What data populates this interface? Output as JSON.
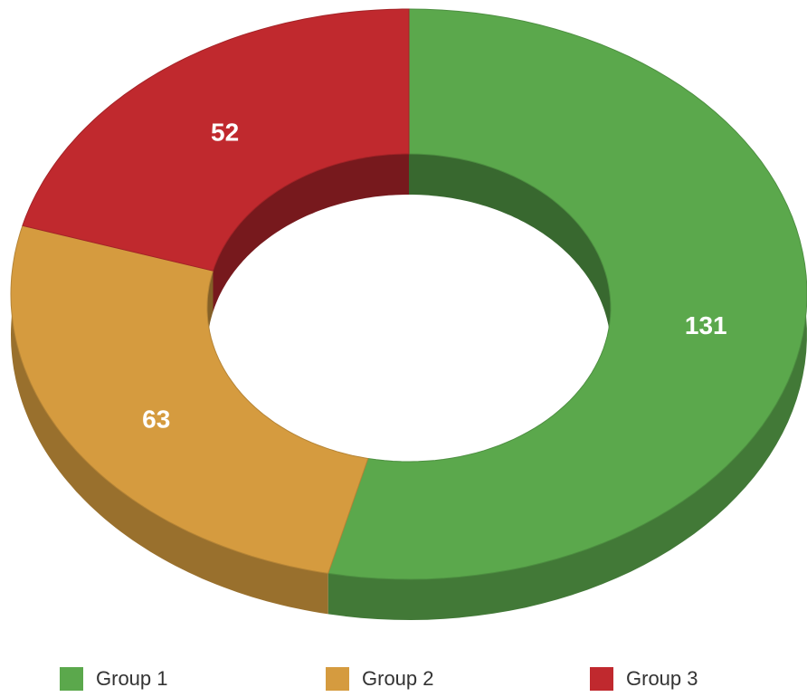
{
  "chart_data": {
    "type": "donut",
    "categories": [
      "Group 1",
      "Group 2",
      "Group 3"
    ],
    "values": [
      131,
      63,
      52
    ],
    "colors": [
      "#5ba84c",
      "#d59b3f",
      "#c0292e"
    ],
    "legend": "bottom"
  }
}
